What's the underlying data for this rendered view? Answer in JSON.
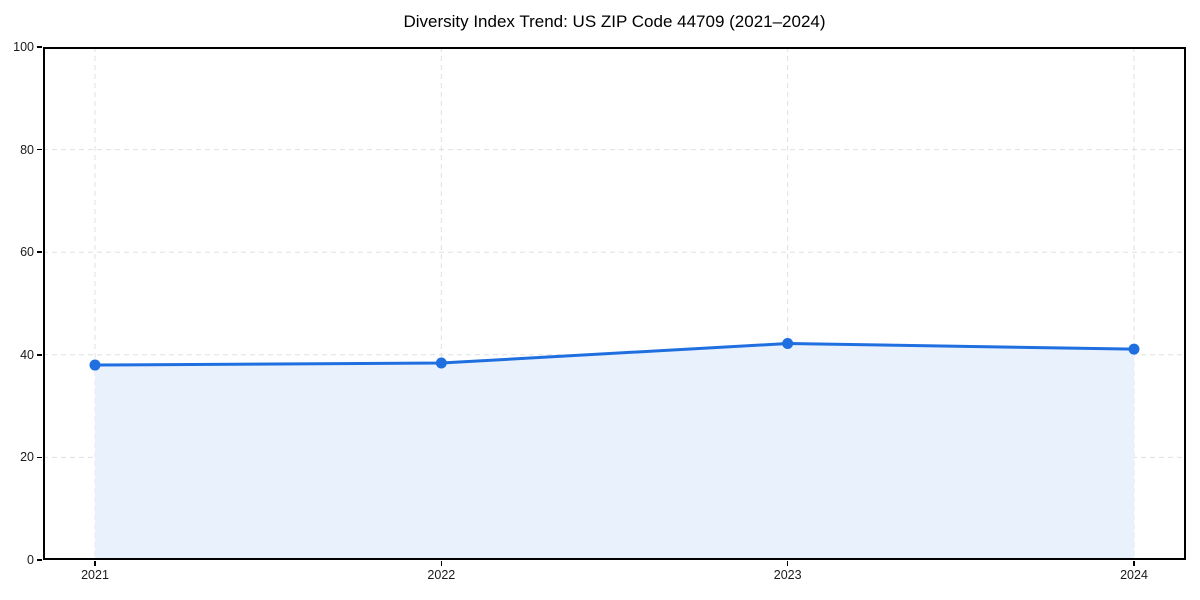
{
  "figure": {
    "background": "#ffffff"
  },
  "chart_data": {
    "type": "line",
    "title": "Diversity Index Trend: US ZIP Code 44709 (2021–2024)",
    "x": [
      "2021",
      "2022",
      "2023",
      "2024"
    ],
    "values": [
      38.0,
      38.4,
      42.2,
      41.1
    ],
    "series_name": "Diversity Index",
    "xlabel": "",
    "ylabel": "",
    "ylim": [
      0,
      100
    ],
    "yticks": [
      0,
      20,
      40,
      60,
      80,
      100
    ],
    "grid": true,
    "grid_style": "dashed",
    "legend": "none",
    "colors": {
      "line": "#1f6fe0",
      "marker": "#1f6fe0",
      "area_fill": "#e9f1fc",
      "grid": "#e0e0e0",
      "frame": "#000000",
      "tick_label": "#1a1a1a",
      "title": "#000000"
    }
  }
}
